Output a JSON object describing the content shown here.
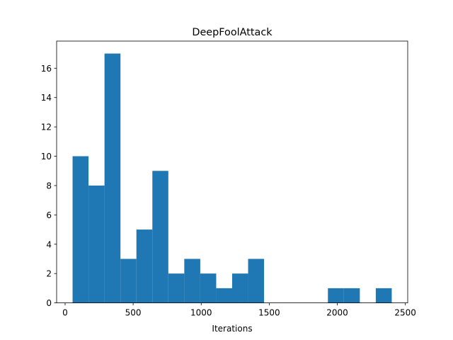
{
  "chart_data": {
    "type": "bar",
    "title": "DeepFoolAttack",
    "xlabel": "Iterations",
    "ylabel": "",
    "bin_edges": [
      55,
      172.25,
      289.5,
      406.75,
      524,
      641.25,
      758.5,
      875.75,
      993,
      1110.25,
      1227.5,
      1344.75,
      1462,
      1579.25,
      1696.5,
      1813.75,
      1931,
      2048.25,
      2165.5,
      2282.75,
      2400
    ],
    "counts": [
      10,
      8,
      17,
      3,
      5,
      9,
      2,
      3,
      2,
      1,
      2,
      3,
      0,
      0,
      0,
      0,
      1,
      1,
      0,
      1
    ],
    "xlim": [
      -62.25,
      2517.25
    ],
    "ylim": [
      0,
      17.85
    ],
    "xticks": [
      0,
      500,
      1000,
      1500,
      2000,
      2500
    ],
    "yticks": [
      0,
      2,
      4,
      6,
      8,
      10,
      12,
      14,
      16
    ],
    "bar_color": "#1f77b4",
    "grid": false,
    "legend": "none"
  }
}
